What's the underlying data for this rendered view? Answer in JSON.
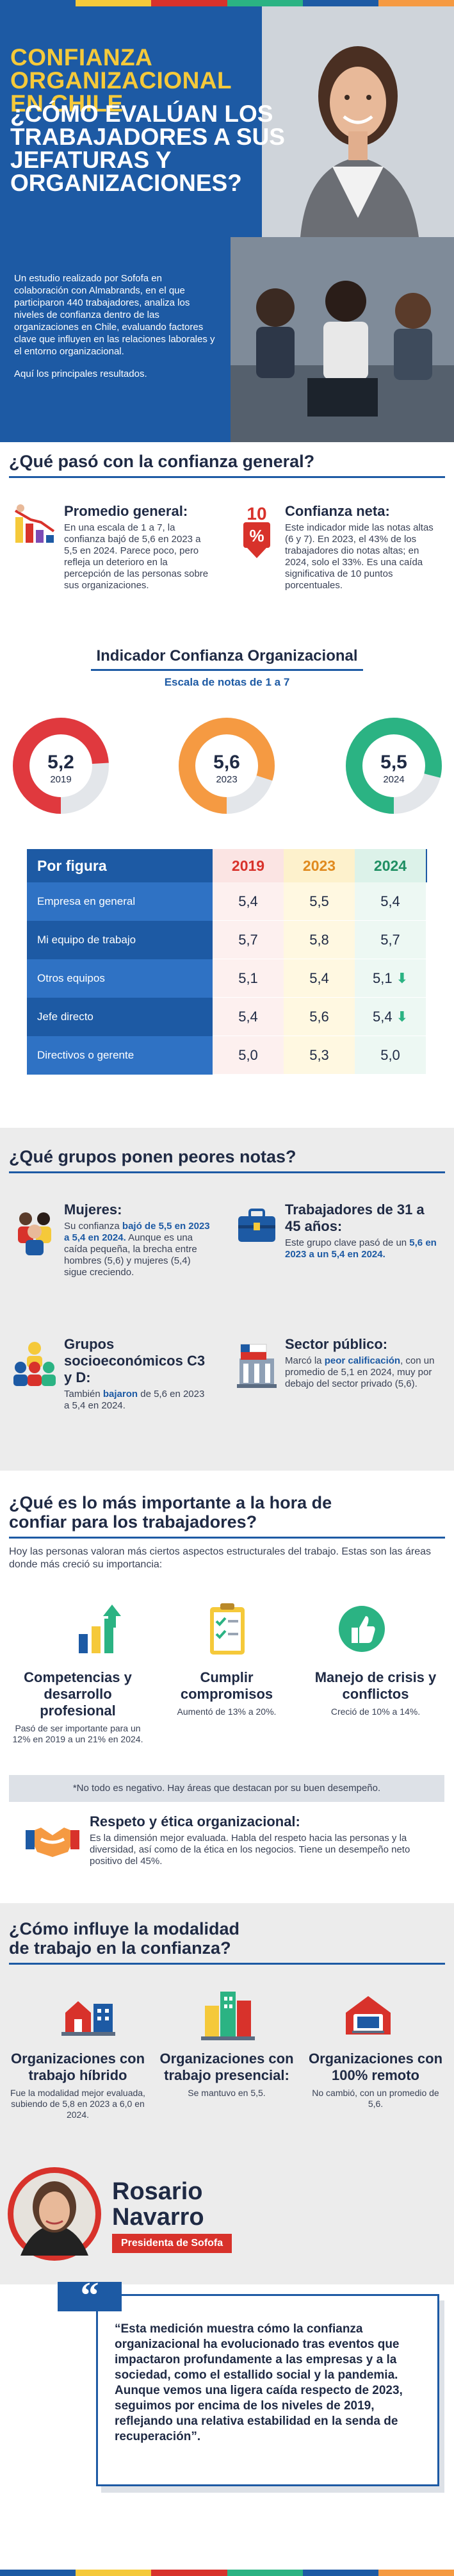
{
  "hero": {
    "title_line1": "CONFIANZA",
    "title_line2": "ORGANIZACIONAL",
    "title_line3": "EN CHILE",
    "question": "¿CÓMO EVALÚAN LOS TRABAJADORES A SUS JEFATURAS Y ORGANIZACIONES?",
    "intro": "Un estudio realizado por Sofofa en colaboración con Almabrands, en el que participaron 440 trabajadores, analiza los niveles de confianza dentro de las organizaciones en Chile, evaluando factores clave que influyen en las relaciones laborales y el entorno organizacional.",
    "intro2": "Aquí los principales resultados."
  },
  "section1": {
    "title": "¿Qué pasó con la confianza general?",
    "promedio_title": "Promedio general:",
    "promedio_text": "En una escala de 1 a 7, la confianza bajó de 5,6 en 2023 a 5,5 en 2024. Parece poco, pero refleja un deterioro en la percepción de las personas sobre sus organizaciones.",
    "neta_badge": "10",
    "neta_pct": "%",
    "neta_title": "Confianza neta:",
    "neta_text": "Este indicador mide las notas altas (6 y 7). En 2023, el 43% de los trabajadores dio notas altas; en 2024, solo el 33%. Es una caída significativa de 10 puntos porcentuales.",
    "indicator_title": "Indicador Confianza Organizacional",
    "indicator_sub": "Escala de notas de 1 a 7",
    "gauges": [
      {
        "value": "5,2",
        "year": "2019",
        "color": "#e0393e",
        "fraction": 0.74
      },
      {
        "value": "5,6",
        "year": "2023",
        "color": "#f59a42",
        "fraction": 0.8
      },
      {
        "value": "5,5",
        "year": "2024",
        "color": "#2bb383",
        "fraction": 0.79
      }
    ]
  },
  "table": {
    "header": [
      "Por figura",
      "2019",
      "2023",
      "2024"
    ],
    "rows": [
      {
        "label": "Empresa en general",
        "v": [
          "5,4",
          "5,5",
          "5,4"
        ],
        "down": false
      },
      {
        "label": "Mi equipo de trabajo",
        "v": [
          "5,7",
          "5,8",
          "5,7"
        ],
        "down": false
      },
      {
        "label": "Otros equipos",
        "v": [
          "5,1",
          "5,4",
          "5,1"
        ],
        "down": true
      },
      {
        "label": "Jefe directo",
        "v": [
          "5,4",
          "5,6",
          "5,4"
        ],
        "down": true
      },
      {
        "label": "Directivos o gerente",
        "v": [
          "5,0",
          "5,3",
          "5,0"
        ],
        "down": false
      }
    ]
  },
  "section2": {
    "title": "¿Qué grupos ponen peores notas?",
    "mujeres_title": "Mujeres:",
    "mujeres_pre": "Su confianza ",
    "mujeres_hl": "bajó de 5,5 en 2023 a 5,4 en 2024.",
    "mujeres_post": " Aunque es una caída pequeña, la brecha entre hombres (5,6) y mujeres (5,4) sigue creciendo.",
    "trab_title": "Trabajadores de 31 a 45 años:",
    "trab_pre": "Este grupo clave pasó de un ",
    "trab_hl": "5,6 en 2023 a un 5,4 en 2024.",
    "grupos_title": "Grupos socioeconómicos C3 y D:",
    "grupos_pre": "También ",
    "grupos_hl": "bajaron",
    "grupos_post": " de 5,6 en 2023 a 5,4 en 2024.",
    "sector_title": "Sector público:",
    "sector_pre": "Marcó la ",
    "sector_hl": "peor calificación",
    "sector_post": ", con un promedio de 5,1 en 2024, muy por debajo del sector privado (5,6)."
  },
  "section3": {
    "title_line1": "¿Qué es lo más importante a la hora de",
    "title_line2": "confiar para los trabajadores?",
    "intro": "Hoy las personas valoran más ciertos aspectos estructurales del trabajo. Estas son las áreas donde más creció su importancia:",
    "cards": [
      {
        "title": "Competencias y desarrollo profesional",
        "text": "Pasó de ser importante para un 12% en 2019 a un 21% en 2024."
      },
      {
        "title": "Cumplir compromisos",
        "text": "Aumentó de 13% a 20%."
      },
      {
        "title": "Manejo de crisis y conflictos",
        "text": "Creció de 10% a 14%."
      }
    ],
    "note": "*No todo es negativo. Hay áreas que destacan por su buen desempeño.",
    "respeto_title": "Respeto y ética organizacional:",
    "respeto_text": "Es la dimensión mejor evaluada. Habla del respeto hacia las personas y la diversidad, así como de la ética en los negocios. Tiene un desempeño neto positivo del 45%."
  },
  "section4": {
    "title_line1": "¿Cómo influye la modalidad",
    "title_line2": "de trabajo en la confianza?",
    "cards": [
      {
        "title": "Organizaciones con trabajo híbrido",
        "text": "Fue la modalidad mejor evaluada, subiendo de 5,8 en 2023 a 6,0 en 2024."
      },
      {
        "title": "Organizaciones con trabajo presencial:",
        "text": "Se mantuvo en 5,5."
      },
      {
        "title": "Organizaciones con 100% remoto",
        "text": "No cambió, con un promedio de 5,6."
      }
    ]
  },
  "quote": {
    "first": "Rosario",
    "last": "Navarro",
    "role": "Presidenta de Sofofa",
    "text": "“Esta medición muestra cómo la confianza organizacional ha evolucionado tras eventos que impactaron profundamente a las empresas y a la sociedad, como el estallido social y la pandemia. Aunque vemos una ligera caída respecto de 2023, seguimos por encima de los niveles de 2019, reflejando una relativa estabilidad en la senda de recuperación”."
  },
  "colors": {
    "blue": "#1d5aa4",
    "yellow": "#f5c93a",
    "red": "#d8322b",
    "green": "#2bb383",
    "orange": "#f59a42"
  }
}
